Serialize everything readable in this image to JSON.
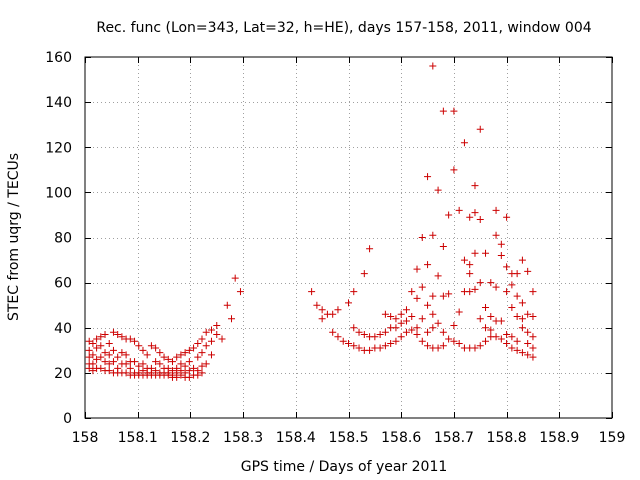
{
  "chart_data": {
    "type": "scatter",
    "title": "Rec. func (Lon=343, Lat=32, h=HE), days 157-158, 2011, window 004",
    "xlabel": "GPS time / Days of year 2011",
    "ylabel": "STEC from uqrg / TECUs",
    "xlim": [
      158,
      159
    ],
    "ylim": [
      0,
      160
    ],
    "xticks": [
      "158",
      "158.1",
      "158.2",
      "158.3",
      "158.4",
      "158.5",
      "158.6",
      "158.7",
      "158.8",
      "158.9",
      "159"
    ],
    "yticks": [
      "0",
      "20",
      "40",
      "60",
      "80",
      "100",
      "120",
      "140",
      "160"
    ],
    "grid": true,
    "marker": "+",
    "color": "#cc0000",
    "series": [
      {
        "name": "STEC",
        "points": [
          [
            158.008,
            34
          ],
          [
            158.008,
            30
          ],
          [
            158.008,
            27
          ],
          [
            158.008,
            24
          ],
          [
            158.008,
            22
          ],
          [
            158.015,
            33
          ],
          [
            158.015,
            28
          ],
          [
            158.015,
            24
          ],
          [
            158.015,
            21
          ],
          [
            158.022,
            35
          ],
          [
            158.022,
            31
          ],
          [
            158.022,
            26
          ],
          [
            158.022,
            22
          ],
          [
            158.03,
            36
          ],
          [
            158.03,
            32
          ],
          [
            158.03,
            27
          ],
          [
            158.03,
            22
          ],
          [
            158.038,
            37
          ],
          [
            158.038,
            29
          ],
          [
            158.038,
            25
          ],
          [
            158.038,
            21
          ],
          [
            158.046,
            33
          ],
          [
            158.046,
            28
          ],
          [
            158.046,
            24
          ],
          [
            158.046,
            21
          ],
          [
            158.054,
            38
          ],
          [
            158.054,
            30
          ],
          [
            158.054,
            25
          ],
          [
            158.054,
            20
          ],
          [
            158.062,
            37
          ],
          [
            158.062,
            27
          ],
          [
            158.062,
            22
          ],
          [
            158.062,
            20
          ],
          [
            158.07,
            36
          ],
          [
            158.07,
            29
          ],
          [
            158.07,
            24
          ],
          [
            158.07,
            20
          ],
          [
            158.078,
            35
          ],
          [
            158.078,
            28
          ],
          [
            158.078,
            24
          ],
          [
            158.078,
            20
          ],
          [
            158.086,
            35
          ],
          [
            158.086,
            25
          ],
          [
            158.086,
            22
          ],
          [
            158.086,
            19
          ],
          [
            158.094,
            34
          ],
          [
            158.094,
            25
          ],
          [
            158.094,
            20
          ],
          [
            158.094,
            19
          ],
          [
            158.102,
            32
          ],
          [
            158.102,
            23
          ],
          [
            158.102,
            20
          ],
          [
            158.102,
            19
          ],
          [
            158.11,
            30
          ],
          [
            158.11,
            24
          ],
          [
            158.11,
            21
          ],
          [
            158.11,
            19
          ],
          [
            158.118,
            28
          ],
          [
            158.118,
            22
          ],
          [
            158.118,
            20
          ],
          [
            158.118,
            19
          ],
          [
            158.126,
            32
          ],
          [
            158.126,
            22
          ],
          [
            158.126,
            20
          ],
          [
            158.126,
            19
          ],
          [
            158.134,
            31
          ],
          [
            158.134,
            25
          ],
          [
            158.134,
            21
          ],
          [
            158.134,
            19
          ],
          [
            158.142,
            29
          ],
          [
            158.142,
            24
          ],
          [
            158.142,
            20
          ],
          [
            158.142,
            19
          ],
          [
            158.15,
            27
          ],
          [
            158.15,
            22
          ],
          [
            158.15,
            20
          ],
          [
            158.15,
            19
          ],
          [
            158.158,
            26
          ],
          [
            158.158,
            22
          ],
          [
            158.158,
            20
          ],
          [
            158.158,
            19
          ],
          [
            158.166,
            25
          ],
          [
            158.166,
            21
          ],
          [
            158.166,
            19
          ],
          [
            158.166,
            18
          ],
          [
            158.174,
            27
          ],
          [
            158.174,
            22
          ],
          [
            158.174,
            20
          ],
          [
            158.174,
            18
          ],
          [
            158.182,
            28
          ],
          [
            158.182,
            24
          ],
          [
            158.182,
            21
          ],
          [
            158.182,
            19
          ],
          [
            158.19,
            29
          ],
          [
            158.19,
            23
          ],
          [
            158.19,
            20
          ],
          [
            158.19,
            18
          ],
          [
            158.198,
            30
          ],
          [
            158.198,
            25
          ],
          [
            158.198,
            21
          ],
          [
            158.198,
            18
          ],
          [
            158.206,
            31
          ],
          [
            158.206,
            22
          ],
          [
            158.206,
            19
          ],
          [
            158.214,
            33
          ],
          [
            158.214,
            27
          ],
          [
            158.214,
            21
          ],
          [
            158.214,
            19
          ],
          [
            158.222,
            35
          ],
          [
            158.222,
            29
          ],
          [
            158.222,
            23
          ],
          [
            158.222,
            20
          ],
          [
            158.23,
            38
          ],
          [
            158.23,
            32
          ],
          [
            158.23,
            24
          ],
          [
            158.24,
            39
          ],
          [
            158.24,
            34
          ],
          [
            158.24,
            28
          ],
          [
            158.25,
            41
          ],
          [
            158.25,
            37
          ],
          [
            158.26,
            35
          ],
          [
            158.27,
            50
          ],
          [
            158.278,
            44
          ],
          [
            158.285,
            62
          ],
          [
            158.295,
            56
          ],
          [
            158.43,
            56
          ],
          [
            158.44,
            50
          ],
          [
            158.45,
            44
          ],
          [
            158.45,
            48
          ],
          [
            158.46,
            46
          ],
          [
            158.47,
            38
          ],
          [
            158.47,
            46
          ],
          [
            158.48,
            36
          ],
          [
            158.48,
            48
          ],
          [
            158.49,
            34
          ],
          [
            158.5,
            51
          ],
          [
            158.5,
            33
          ],
          [
            158.51,
            40
          ],
          [
            158.51,
            32
          ],
          [
            158.51,
            56
          ],
          [
            158.52,
            31
          ],
          [
            158.52,
            38
          ],
          [
            158.53,
            64
          ],
          [
            158.53,
            37
          ],
          [
            158.53,
            30
          ],
          [
            158.54,
            75
          ],
          [
            158.54,
            36
          ],
          [
            158.54,
            30
          ],
          [
            158.55,
            36
          ],
          [
            158.55,
            31
          ],
          [
            158.56,
            37
          ],
          [
            158.56,
            31
          ],
          [
            158.57,
            46
          ],
          [
            158.57,
            38
          ],
          [
            158.57,
            32
          ],
          [
            158.58,
            45
          ],
          [
            158.58,
            40
          ],
          [
            158.58,
            33
          ],
          [
            158.59,
            44
          ],
          [
            158.59,
            40
          ],
          [
            158.59,
            34
          ],
          [
            158.6,
            46
          ],
          [
            158.6,
            42
          ],
          [
            158.6,
            36
          ],
          [
            158.61,
            48
          ],
          [
            158.61,
            43
          ],
          [
            158.61,
            38
          ],
          [
            158.62,
            56
          ],
          [
            158.62,
            45
          ],
          [
            158.62,
            39
          ],
          [
            158.63,
            53
          ],
          [
            158.63,
            66
          ],
          [
            158.63,
            37
          ],
          [
            158.63,
            40
          ],
          [
            158.64,
            58
          ],
          [
            158.64,
            80
          ],
          [
            158.64,
            44
          ],
          [
            158.64,
            34
          ],
          [
            158.65,
            68
          ],
          [
            158.65,
            107
          ],
          [
            158.65,
            50
          ],
          [
            158.65,
            38
          ],
          [
            158.65,
            32
          ],
          [
            158.66,
            54
          ],
          [
            158.66,
            81
          ],
          [
            158.66,
            156
          ],
          [
            158.66,
            46
          ],
          [
            158.66,
            40
          ],
          [
            158.66,
            31
          ],
          [
            158.67,
            63
          ],
          [
            158.67,
            101
          ],
          [
            158.67,
            42
          ],
          [
            158.67,
            31
          ],
          [
            158.68,
            136
          ],
          [
            158.68,
            76
          ],
          [
            158.68,
            54
          ],
          [
            158.68,
            38
          ],
          [
            158.68,
            32
          ],
          [
            158.69,
            90
          ],
          [
            158.69,
            55
          ],
          [
            158.69,
            35
          ],
          [
            158.7,
            136
          ],
          [
            158.7,
            110
          ],
          [
            158.7,
            41
          ],
          [
            158.7,
            34
          ],
          [
            158.71,
            92
          ],
          [
            158.71,
            47
          ],
          [
            158.71,
            33
          ],
          [
            158.72,
            122
          ],
          [
            158.72,
            70
          ],
          [
            158.72,
            56
          ],
          [
            158.72,
            31
          ],
          [
            158.73,
            89
          ],
          [
            158.73,
            68
          ],
          [
            158.73,
            64
          ],
          [
            158.73,
            56
          ],
          [
            158.73,
            31
          ],
          [
            158.74,
            103
          ],
          [
            158.74,
            91
          ],
          [
            158.74,
            73
          ],
          [
            158.74,
            57
          ],
          [
            158.74,
            31
          ],
          [
            158.75,
            128
          ],
          [
            158.75,
            88
          ],
          [
            158.75,
            60
          ],
          [
            158.75,
            44
          ],
          [
            158.75,
            32
          ],
          [
            158.76,
            73
          ],
          [
            158.76,
            49
          ],
          [
            158.76,
            40
          ],
          [
            158.76,
            34
          ],
          [
            158.77,
            60
          ],
          [
            158.77,
            45
          ],
          [
            158.77,
            39
          ],
          [
            158.77,
            36
          ],
          [
            158.78,
            92
          ],
          [
            158.78,
            81
          ],
          [
            158.78,
            58
          ],
          [
            158.78,
            43
          ],
          [
            158.78,
            36
          ],
          [
            158.79,
            77
          ],
          [
            158.79,
            72
          ],
          [
            158.79,
            43
          ],
          [
            158.79,
            35
          ],
          [
            158.8,
            89
          ],
          [
            158.8,
            67
          ],
          [
            158.8,
            56
          ],
          [
            158.8,
            37
          ],
          [
            158.8,
            33
          ],
          [
            158.81,
            64
          ],
          [
            158.81,
            59
          ],
          [
            158.81,
            49
          ],
          [
            158.81,
            36
          ],
          [
            158.81,
            31
          ],
          [
            158.82,
            64
          ],
          [
            158.82,
            54
          ],
          [
            158.82,
            45
          ],
          [
            158.82,
            34
          ],
          [
            158.82,
            30
          ],
          [
            158.83,
            70
          ],
          [
            158.83,
            51
          ],
          [
            158.83,
            44
          ],
          [
            158.83,
            40
          ],
          [
            158.83,
            29
          ],
          [
            158.84,
            65
          ],
          [
            158.84,
            46
          ],
          [
            158.84,
            38
          ],
          [
            158.84,
            33
          ],
          [
            158.84,
            28
          ],
          [
            158.85,
            56
          ],
          [
            158.85,
            45
          ],
          [
            158.85,
            36
          ],
          [
            158.85,
            31
          ],
          [
            158.85,
            27
          ]
        ]
      }
    ]
  }
}
